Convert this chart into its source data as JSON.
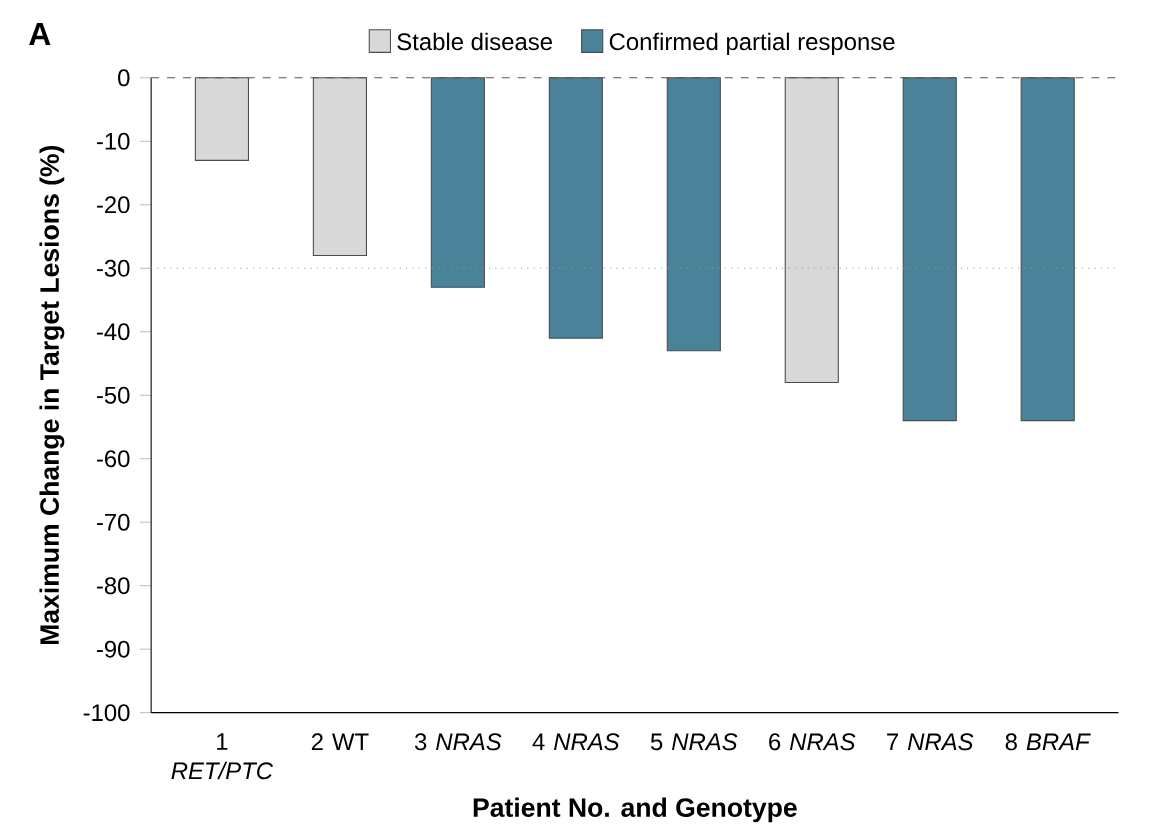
{
  "chart_data": {
    "type": "bar",
    "title": "A",
    "xlabel": "Patient No. and Genotype",
    "ylabel": "Maximum Change in Target Lesions (%)",
    "categories": [
      "1 *RET/PTC*",
      "2 WT",
      "3 *NRAS*",
      "4 *NRAS*",
      "5 *NRAS*",
      "6 *NRAS*",
      "7 *NRAS*",
      "8 *BRAF*"
    ],
    "series": [
      {
        "name": "Stable disease",
        "color": "#d8d8d8",
        "values": [
          -13,
          -28,
          null,
          null,
          null,
          -48,
          null,
          null
        ]
      },
      {
        "name": "Confirmed partial response",
        "color": "#4a8299",
        "values": [
          null,
          null,
          -33,
          -41,
          -43,
          null,
          -54,
          -54
        ]
      }
    ],
    "ylim": [
      -100,
      0
    ],
    "yticks": [
      -100,
      -90,
      -80,
      -70,
      -60,
      -50,
      -40,
      -30,
      -20,
      -10,
      0
    ],
    "ref_lines": [
      {
        "axis": "y",
        "value": 0,
        "line_style": "dashed",
        "color": "#555555"
      },
      {
        "axis": "y",
        "value": -30,
        "line_style": "dotted",
        "color": "#999999"
      }
    ],
    "legend": "top",
    "grid": false
  }
}
